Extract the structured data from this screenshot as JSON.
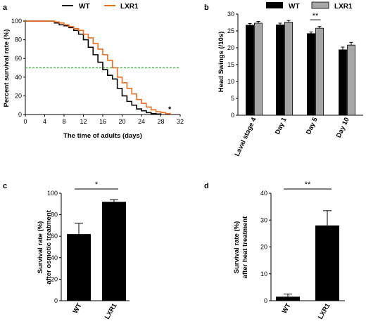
{
  "colors": {
    "wt": "#000000",
    "lxr1": "#ef6b1e",
    "bar_lxr1": "#a6a6a6",
    "dashed": "#2db82d"
  },
  "chart_data": [
    {
      "panel": "a",
      "type": "line",
      "legend": [
        "WT",
        "LXR1"
      ],
      "xlabel": "The time of adults (days)",
      "ylabel": "Percent survival rate (%)",
      "xlim": [
        0,
        32
      ],
      "ylim": [
        0,
        100
      ],
      "xticks": [
        0,
        4,
        8,
        12,
        16,
        20,
        24,
        28,
        32
      ],
      "yticks": [
        0,
        20,
        40,
        60,
        80,
        100
      ],
      "reference_line_y": 50,
      "annotation": "*",
      "series": [
        {
          "name": "WT",
          "points": [
            [
              0,
              100
            ],
            [
              5,
              100
            ],
            [
              6,
              98
            ],
            [
              7,
              96
            ],
            [
              8,
              95
            ],
            [
              9,
              93
            ],
            [
              10,
              90
            ],
            [
              11,
              86
            ],
            [
              12,
              80
            ],
            [
              13,
              72
            ],
            [
              14,
              64
            ],
            [
              15,
              56
            ],
            [
              16,
              48
            ],
            [
              17,
              42
            ],
            [
              18,
              38
            ],
            [
              19,
              28
            ],
            [
              20,
              20
            ],
            [
              21,
              14
            ],
            [
              22,
              10
            ],
            [
              23,
              6
            ],
            [
              24,
              4
            ],
            [
              25,
              2
            ],
            [
              26,
              1
            ],
            [
              27,
              0.5
            ],
            [
              28,
              0
            ]
          ]
        },
        {
          "name": "LXR1",
          "points": [
            [
              0,
              100
            ],
            [
              5,
              100
            ],
            [
              6,
              99
            ],
            [
              7,
              98
            ],
            [
              8,
              96
            ],
            [
              9,
              94
            ],
            [
              10,
              92
            ],
            [
              11,
              90
            ],
            [
              12,
              86
            ],
            [
              13,
              82
            ],
            [
              14,
              76
            ],
            [
              15,
              70
            ],
            [
              16,
              64
            ],
            [
              17,
              58
            ],
            [
              18,
              50
            ],
            [
              19,
              40
            ],
            [
              20,
              34
            ],
            [
              21,
              28
            ],
            [
              22,
              22
            ],
            [
              23,
              16
            ],
            [
              24,
              12
            ],
            [
              25,
              8
            ],
            [
              26,
              5
            ],
            [
              27,
              3
            ],
            [
              28,
              2
            ],
            [
              29,
              1
            ],
            [
              30,
              0
            ]
          ]
        }
      ]
    },
    {
      "panel": "b",
      "type": "bar",
      "legend": [
        "WT",
        "LXR1"
      ],
      "ylabel": "Head Swings (/10s)",
      "ylim": [
        0,
        30
      ],
      "yticks": [
        0,
        5,
        10,
        15,
        20,
        25,
        30
      ],
      "categories": [
        "Laval stage 4",
        "Day 1",
        "Day 5",
        "Day 10"
      ],
      "series": [
        {
          "name": "WT",
          "values": [
            26.7,
            26.8,
            24.2,
            19.4
          ],
          "errors": [
            0.5,
            0.5,
            0.5,
            0.8
          ]
        },
        {
          "name": "LXR1",
          "values": [
            27.3,
            27.6,
            25.8,
            20.8
          ],
          "errors": [
            0.5,
            0.5,
            0.5,
            0.8
          ]
        }
      ],
      "significance": [
        {
          "category": "Day 5",
          "label": "**"
        }
      ]
    },
    {
      "panel": "c",
      "type": "bar",
      "ylabel": "Survival rate (%)",
      "ylabel2": "after osmotic treatment",
      "ylim": [
        0,
        100
      ],
      "yticks": [
        0,
        20,
        40,
        60,
        80,
        100
      ],
      "categories": [
        "WT",
        "LXR1"
      ],
      "values": [
        62,
        92
      ],
      "errors": [
        10,
        2
      ],
      "significance": "*"
    },
    {
      "panel": "d",
      "type": "bar",
      "ylabel": "Survival rate (%)",
      "ylabel2": "after heat treatment",
      "ylim": [
        0,
        40
      ],
      "yticks": [
        0,
        10,
        20,
        30,
        40
      ],
      "categories": [
        "WT",
        "LXR1"
      ],
      "values": [
        1.5,
        28
      ],
      "errors": [
        1,
        5.5
      ],
      "significance": "**"
    }
  ]
}
